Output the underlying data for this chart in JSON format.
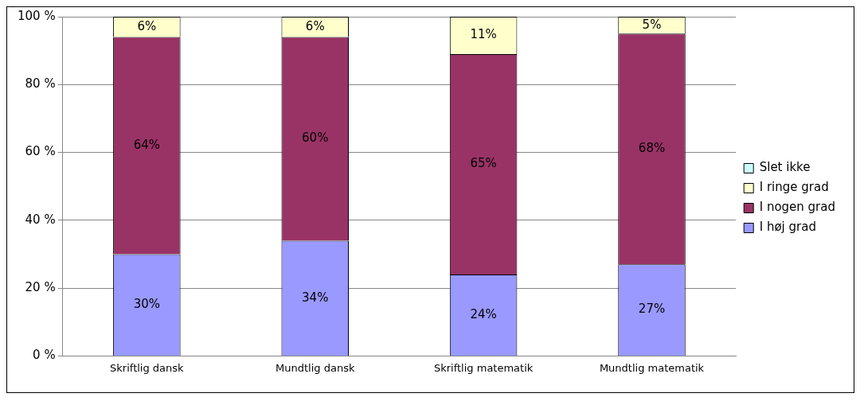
{
  "chart_data": {
    "type": "bar",
    "stacked": true,
    "categories": [
      "Skriftlig dansk",
      "Mundtlig dansk",
      "Skriftlig matematik",
      "Mundtlig matematik"
    ],
    "series": [
      {
        "name": "I høj grad",
        "color": "#9999ff",
        "values": [
          30,
          34,
          24,
          27
        ],
        "value_labels": [
          "30%",
          "34%",
          "24%",
          "27%"
        ]
      },
      {
        "name": "I nogen grad",
        "color": "#993366",
        "values": [
          64,
          60,
          65,
          68
        ],
        "value_labels": [
          "64%",
          "60%",
          "65%",
          "68%"
        ]
      },
      {
        "name": "I ringe grad",
        "color": "#ffffcc",
        "values": [
          6,
          6,
          11,
          5
        ],
        "value_labels": [
          "6%",
          "6%",
          "11%",
          "5%"
        ]
      },
      {
        "name": "Slet ikke",
        "color": "#ccffff",
        "values": [
          0,
          0,
          0,
          0
        ],
        "value_labels": [
          null,
          null,
          null,
          null
        ]
      }
    ],
    "ylim": [
      0,
      100
    ],
    "yticks": [
      {
        "value": 0,
        "label": "0 %"
      },
      {
        "value": 20,
        "label": "20 %"
      },
      {
        "value": 40,
        "label": "40 %"
      },
      {
        "value": 60,
        "label": "60 %"
      },
      {
        "value": 80,
        "label": "80 %"
      },
      {
        "value": 100,
        "label": "100 %"
      }
    ],
    "grid": "y",
    "legend": "right"
  }
}
